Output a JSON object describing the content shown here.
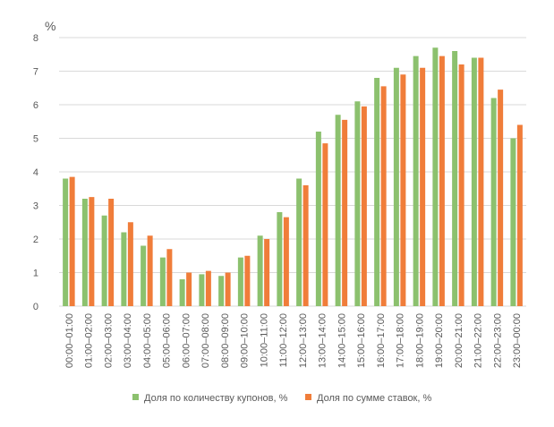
{
  "chart_data": {
    "type": "bar",
    "title": "",
    "xlabel": "",
    "ylabel": "%",
    "ylim": [
      0,
      8
    ],
    "yticks": [
      0,
      1,
      2,
      3,
      4,
      5,
      6,
      7,
      8
    ],
    "grid": true,
    "legend_position": "bottom",
    "categories": [
      "00:00–01:00",
      "01:00–02:00",
      "02:00–03:00",
      "03:00–04:00",
      "04:00–05:00",
      "05:00–06:00",
      "06:00–07:00",
      "07:00–08:00",
      "08:00–09:00",
      "09:00–10:00",
      "10:00–11:00",
      "11:00–12:00",
      "12:00–13:00",
      "13:00–14:00",
      "14:00–15:00",
      "15:00–16:00",
      "16:00–17:00",
      "17:00–18:00",
      "18:00–19:00",
      "19:00–20:00",
      "20:00–21:00",
      "21:00–22:00",
      "22:00–23:00",
      "23:00–00:00"
    ],
    "series": [
      {
        "name": "Доля по количеству купонов, %",
        "color": "#8cc16e",
        "values": [
          3.8,
          3.2,
          2.7,
          2.2,
          1.8,
          1.45,
          0.8,
          0.95,
          0.9,
          1.45,
          2.1,
          2.8,
          3.8,
          5.2,
          5.7,
          6.1,
          6.8,
          7.1,
          7.45,
          7.7,
          7.6,
          7.4,
          6.2,
          5.0
        ]
      },
      {
        "name": "Доля по сумме ставок, %",
        "color": "#f07d3a",
        "values": [
          3.85,
          3.25,
          3.2,
          2.5,
          2.1,
          1.7,
          1.0,
          1.05,
          1.0,
          1.5,
          2.0,
          2.65,
          3.6,
          4.85,
          5.55,
          5.95,
          6.55,
          6.9,
          7.1,
          7.45,
          7.2,
          7.4,
          6.45,
          5.4
        ]
      }
    ],
    "gridline_color": "#d9d9d9",
    "text_color": "#595959"
  }
}
